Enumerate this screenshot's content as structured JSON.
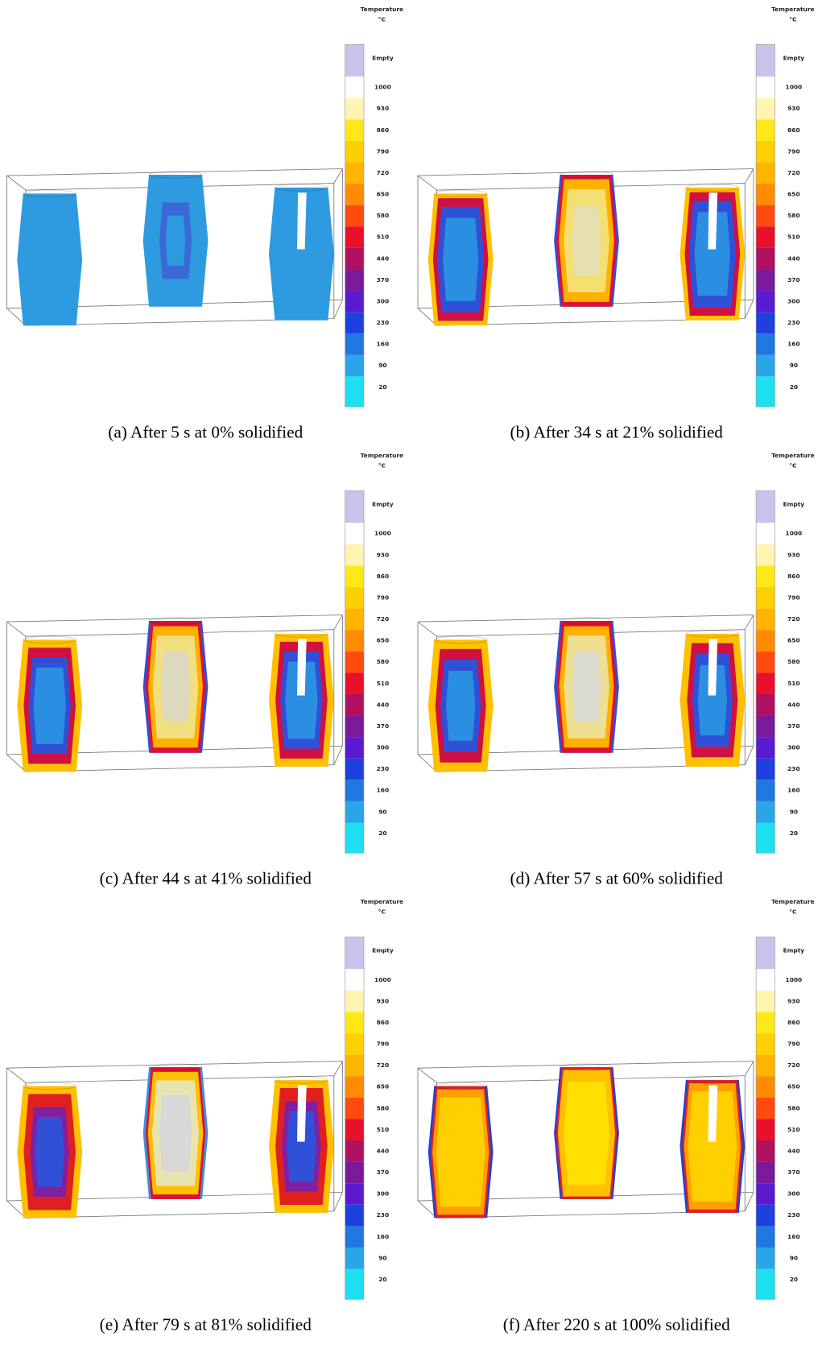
{
  "legend": {
    "title": "Temperature",
    "unit": "°C",
    "labels": [
      "Empty",
      1000,
      930,
      860,
      790,
      720,
      650,
      580,
      510,
      440,
      370,
      300,
      230,
      160,
      90,
      20
    ],
    "colors": [
      "#cac4ec",
      "#ffffff",
      "#fff5b0",
      "#ffe81a",
      "#ffd000",
      "#ffb400",
      "#ff8c00",
      "#ff4a10",
      "#e8102a",
      "#b01060",
      "#7a1a9a",
      "#5a1ad0",
      "#1e40e0",
      "#1e78e0",
      "#2aa6e8",
      "#1ee0f0"
    ]
  },
  "panels": [
    {
      "caption": "(a) After 5 s at 0% solidified"
    },
    {
      "caption": "(b) After 34 s at 21% solidified"
    },
    {
      "caption": "(c) After 44 s at 41% solidified"
    },
    {
      "caption": "(d) After 57 s at 60% solidified"
    },
    {
      "caption": "(e) After 79 s at 81% solidified"
    },
    {
      "caption": "(f) After 220 s at 100% solidified"
    }
  ]
}
